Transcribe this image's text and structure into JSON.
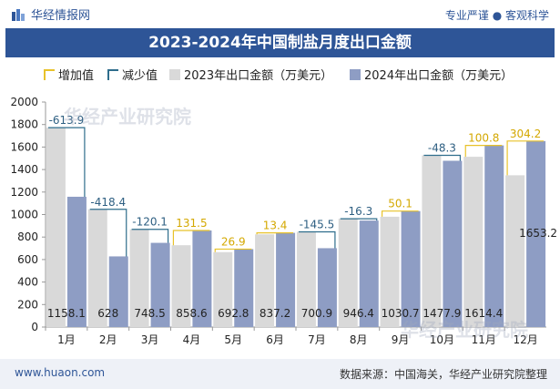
{
  "header": {
    "brand": "华经情报网",
    "slogan": "专业严谨 ● 客观科学"
  },
  "footer": {
    "site": "www.huaon.com",
    "source": "数据来源：中国海关，华经产业研究院整理"
  },
  "watermark": "华经产业研究院",
  "colors": {
    "brand": "#2e5597",
    "increase": "#e8c22a",
    "decrease": "#2e6d8c",
    "bar_2023": "#d9d9d9",
    "bar_2024": "#8e9dc4"
  },
  "chart_data": {
    "type": "bar",
    "title": "2023-2024年中国制盐月度出口金额",
    "legend": [
      "增加值",
      "减少值",
      "2023年出口金额（万美元）",
      "2024年出口金额（万美元）"
    ],
    "legend_position": "top",
    "categories": [
      "1月",
      "2月",
      "3月",
      "4月",
      "5月",
      "6月",
      "7月",
      "8月",
      "9月",
      "10月",
      "11月",
      "12月"
    ],
    "series": [
      {
        "name": "2023年出口金额（万美元）",
        "values": [
          1772.0,
          1046.4,
          868.6,
          727.1,
          665.9,
          823.8,
          846.4,
          962.7,
          980.6,
          1526.2,
          1513.6,
          1349.0
        ]
      },
      {
        "name": "2024年出口金额（万美元）",
        "values": [
          1158.1,
          628,
          748.5,
          858.6,
          692.8,
          837.2,
          700.9,
          946.4,
          1030.7,
          1477.9,
          1614.4,
          1653.2
        ]
      }
    ],
    "changes": [
      -613.9,
      -418.4,
      -120.1,
      131.5,
      26.9,
      13.4,
      -145.5,
      -16.3,
      50.1,
      -48.3,
      100.8,
      304.2
    ],
    "change_labels": [
      "-613.9",
      "-418.4",
      "-120.1",
      "131.5",
      "26.9",
      "13.4",
      "-145.5",
      "-16.3",
      "50.1",
      "-48.3",
      "100.8",
      "304.2"
    ],
    "value_labels_2024": [
      "1158.1",
      "628",
      "748.5",
      "858.6",
      "692.8",
      "837.2",
      "700.9",
      "946.4",
      "1030.7",
      "1477.9",
      "1614.4",
      "1653.2"
    ],
    "y_ticks": [
      0,
      200,
      400,
      600,
      800,
      1000,
      1200,
      1400,
      1600,
      1800,
      2000
    ],
    "ylim": [
      0,
      2000
    ]
  }
}
